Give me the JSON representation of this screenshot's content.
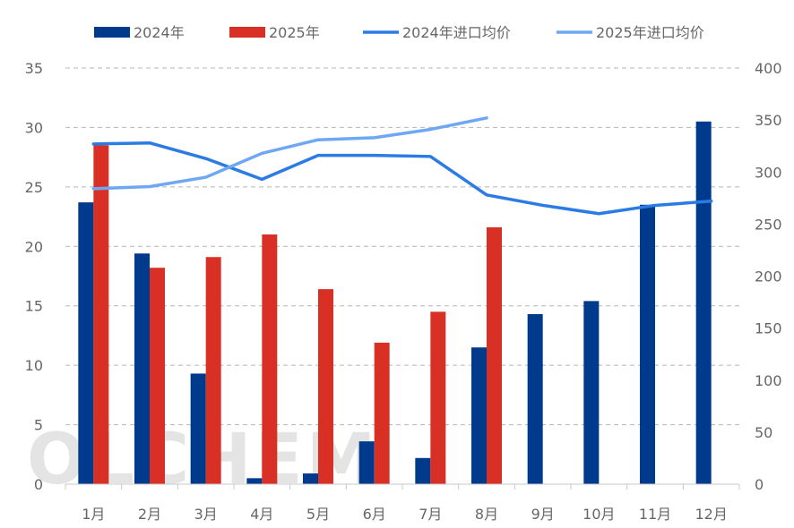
{
  "chart_data": {
    "type": "bar",
    "categories": [
      "1月",
      "2月",
      "3月",
      "4月",
      "5月",
      "6月",
      "7月",
      "8月",
      "9月",
      "10月",
      "11月",
      "12月"
    ],
    "series": [
      {
        "name": "2024年",
        "kind": "bar",
        "axis": "left",
        "color": "#003a8c",
        "values": [
          23.7,
          19.4,
          9.3,
          0.5,
          0.9,
          3.6,
          2.2,
          11.5,
          14.3,
          15.4,
          23.5,
          30.5
        ]
      },
      {
        "name": "2025年",
        "kind": "bar",
        "axis": "left",
        "color": "#d93025",
        "values": [
          28.5,
          18.2,
          19.1,
          21.0,
          16.4,
          11.9,
          14.5,
          21.6,
          null,
          null,
          null,
          null
        ]
      },
      {
        "name": "2024年进口均价",
        "kind": "line",
        "axis": "right",
        "color": "#2b7be4",
        "values": [
          327,
          328,
          313,
          293,
          316,
          316,
          315,
          278,
          268,
          260,
          268,
          272
        ]
      },
      {
        "name": "2025年进口均价",
        "kind": "line",
        "axis": "right",
        "color": "#6ea8f5",
        "values": [
          284,
          286,
          295,
          318,
          331,
          333,
          341,
          352,
          null,
          null,
          null,
          null
        ]
      }
    ],
    "left_axis": {
      "min": 0,
      "max": 35,
      "ticks": [
        0,
        5,
        10,
        15,
        20,
        25,
        30,
        35
      ]
    },
    "right_axis": {
      "min": 0,
      "max": 400,
      "ticks": [
        0,
        50,
        100,
        150,
        200,
        250,
        300,
        350,
        400
      ]
    },
    "legend_position": "top",
    "grid": "dashed-horizontal",
    "watermark": "OLCHEM"
  }
}
